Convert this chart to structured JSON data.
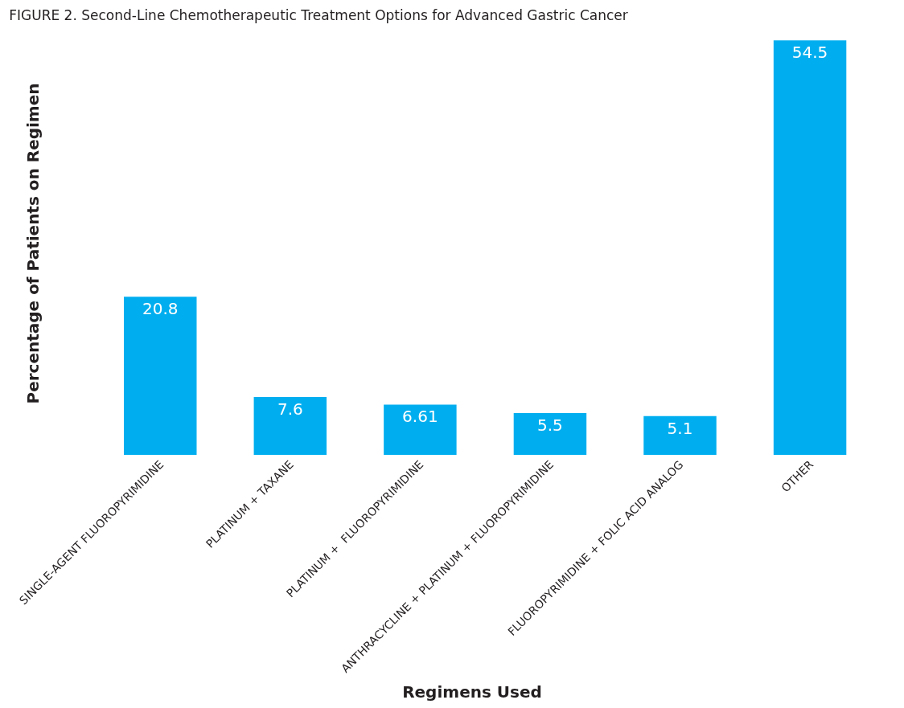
{
  "chart_data": {
    "type": "bar",
    "title": "FIGURE 2. Second-Line Chemotherapeutic Treatment Options for Advanced Gastric Cancer",
    "xlabel": "Regimens Used",
    "ylabel": "Percentage of Patients on Regimen",
    "categories": [
      "SINGLE-AGENT FLUOROPYRIMIDINE",
      "PLATINUM + TAXANE",
      "PLATINUM +  FLUOROPYRIMIDINE",
      "ANTHRACYCLINE + PLATINUM + FLUOROPYRIMIDINE",
      "FLUOROPYRIMIDINE + FOLIC ACID ANALOG",
      "OTHER"
    ],
    "values": [
      20.8,
      7.6,
      6.61,
      5.5,
      5.1,
      54.5
    ],
    "color": "#00aeef",
    "data_labels": true,
    "tick_labels": "x",
    "legend": false
  }
}
